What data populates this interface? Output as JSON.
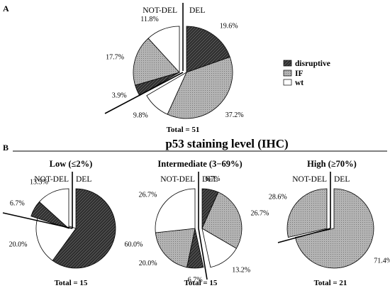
{
  "figure": {
    "panel_a_label": "A",
    "panel_b_label": "B",
    "section_b_title": "p53 staining level (IHC)"
  },
  "legend": [
    {
      "key": "disruptive",
      "label": "disruptive",
      "pattern": "hatch-dark"
    },
    {
      "key": "IF",
      "label": "IF",
      "pattern": "dots-gray"
    },
    {
      "key": "wt",
      "label": "wt",
      "pattern": "white"
    }
  ],
  "colors": {
    "disruptive": "#3a3a3a",
    "IF": "#a8a8a8",
    "wt": "#ffffff",
    "stroke": "#000000"
  },
  "chart_data": [
    {
      "type": "pie",
      "id": "A",
      "title": "",
      "left_label": "NOT-DEL",
      "right_label": "DEL",
      "total_label": "Total = 51",
      "slices": [
        {
          "group": "DEL",
          "category": "disruptive",
          "value": 19.6,
          "label": "19.6%"
        },
        {
          "group": "DEL",
          "category": "IF",
          "value": 37.2,
          "label": "37.2%"
        },
        {
          "group": "DEL",
          "category": "wt",
          "value": 9.8,
          "label": "9.8%"
        },
        {
          "group": "NOT-DEL",
          "category": "disruptive",
          "value": 3.9,
          "label": "3.9%"
        },
        {
          "group": "NOT-DEL",
          "category": "IF",
          "value": 17.7,
          "label": "17.7%"
        },
        {
          "group": "NOT-DEL",
          "category": "wt",
          "value": 11.8,
          "label": "11.8%"
        }
      ]
    },
    {
      "type": "pie",
      "id": "B-low",
      "title": "Low (≤2%)",
      "left_label": "NOT-DEL",
      "right_label": "DEL",
      "total_label": "Total = 15",
      "slices": [
        {
          "group": "DEL",
          "category": "disruptive",
          "value": 60.0,
          "label": "60.0%"
        },
        {
          "group": "DEL",
          "category": "wt",
          "value": 20.0,
          "label": "20.0%"
        },
        {
          "group": "NOT-DEL",
          "category": "disruptive",
          "value": 6.7,
          "label": "6.7%"
        },
        {
          "group": "NOT-DEL",
          "category": "wt",
          "value": 13.3,
          "label": "13.3%"
        }
      ]
    },
    {
      "type": "pie",
      "id": "B-intermediate",
      "title": "Intermediate (3−69%)",
      "left_label": "NOT-DEL",
      "right_label": "DEL",
      "total_label": "Total = 15",
      "slices": [
        {
          "group": "DEL",
          "category": "disruptive",
          "value": 6.7,
          "label": "6.7%"
        },
        {
          "group": "DEL",
          "category": "IF",
          "value": 26.7,
          "label": "26.7%"
        },
        {
          "group": "DEL",
          "category": "wt",
          "value": 13.2,
          "label": "13.2%"
        },
        {
          "group": "NOT-DEL",
          "category": "disruptive",
          "value": 6.7,
          "label": "6.7%"
        },
        {
          "group": "NOT-DEL",
          "category": "IF",
          "value": 20.0,
          "label": "20.0%"
        },
        {
          "group": "NOT-DEL",
          "category": "wt",
          "value": 26.7,
          "label": "26.7%"
        }
      ]
    },
    {
      "type": "pie",
      "id": "B-high",
      "title": "High (≥70%)",
      "left_label": "NOT-DEL",
      "right_label": "DEL",
      "total_label": "Total = 21",
      "slices": [
        {
          "group": "DEL",
          "category": "IF",
          "value": 71.4,
          "label": "71.4%"
        },
        {
          "group": "NOT-DEL",
          "category": "IF",
          "value": 28.6,
          "label": "28.6%"
        }
      ]
    }
  ]
}
